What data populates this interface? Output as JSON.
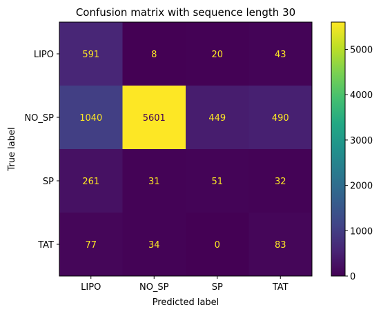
{
  "chart_data": {
    "type": "heatmap",
    "title": "Confusion matrix with sequence length 30",
    "xlabel": "Predicted label",
    "ylabel": "True label",
    "x_categories": [
      "LIPO",
      "NO_SP",
      "SP",
      "TAT"
    ],
    "y_categories": [
      "LIPO",
      "NO_SP",
      "SP",
      "TAT"
    ],
    "values": [
      [
        591,
        8,
        20,
        43
      ],
      [
        1040,
        5601,
        449,
        490
      ],
      [
        261,
        31,
        51,
        32
      ],
      [
        77,
        34,
        0,
        83
      ]
    ],
    "colormap": "viridis",
    "colorbar": {
      "range": [
        0,
        5601
      ],
      "ticks": [
        0,
        1000,
        2000,
        3000,
        4000,
        5000
      ],
      "tick_labels": [
        "0",
        "1000",
        "2000",
        "3000",
        "4000",
        "5000"
      ]
    },
    "text_colors": {
      "on_dark": "#fde725",
      "on_light": "#440154"
    }
  }
}
